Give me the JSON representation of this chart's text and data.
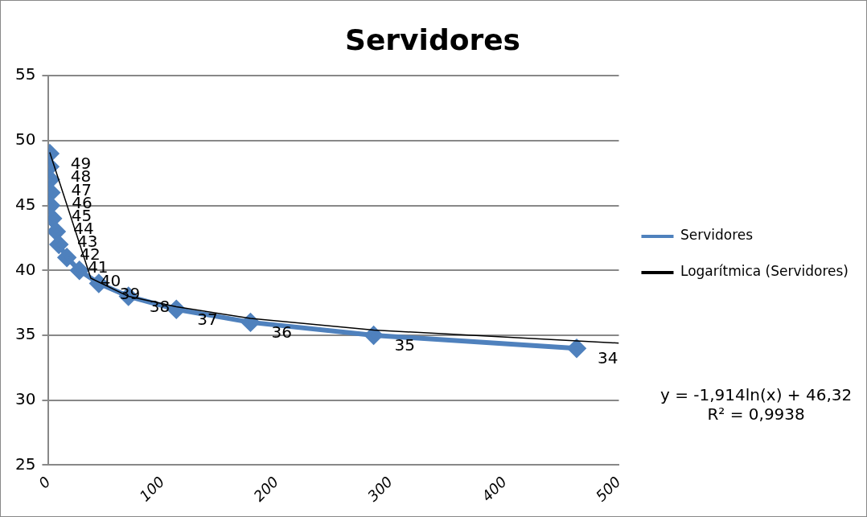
{
  "chart_data": {
    "type": "line",
    "title": "Servidores",
    "series": [
      {
        "name": "Servidores",
        "color": "#4f81bd",
        "marker": "diamond",
        "x": [
          1,
          1,
          1.5,
          2,
          1.7,
          3.4,
          6.7,
          9,
          16,
          27,
          44,
          70,
          112,
          177,
          285,
          463
        ],
        "values": [
          49,
          48,
          47,
          46,
          45,
          44,
          43,
          42,
          41,
          40,
          39,
          38,
          37,
          36,
          35,
          34
        ],
        "value_labels": [
          "49",
          "48",
          "47",
          "46",
          "45",
          "44",
          "43",
          "42",
          "41",
          "40",
          "39",
          "38",
          "37",
          "36",
          "35",
          "34"
        ]
      },
      {
        "name": "Logarítmica (Servidores)",
        "color": "#000000",
        "marker": "none",
        "x": [
          1,
          37,
          70,
          112,
          177,
          285,
          500
        ],
        "values": [
          49.1,
          39.4,
          38.0,
          37.2,
          36.3,
          35.4,
          34.4
        ]
      }
    ],
    "xlim": [
      0,
      500
    ],
    "xticks": [
      0,
      100,
      200,
      300,
      400,
      500
    ],
    "ylim": [
      25,
      55
    ],
    "yticks": [
      25,
      30,
      35,
      40,
      45,
      50,
      55
    ],
    "grid": "y",
    "legend": "right",
    "annotations": [
      "y = -1,914ln(x) + 46,32",
      "R² = 0,9938"
    ]
  }
}
